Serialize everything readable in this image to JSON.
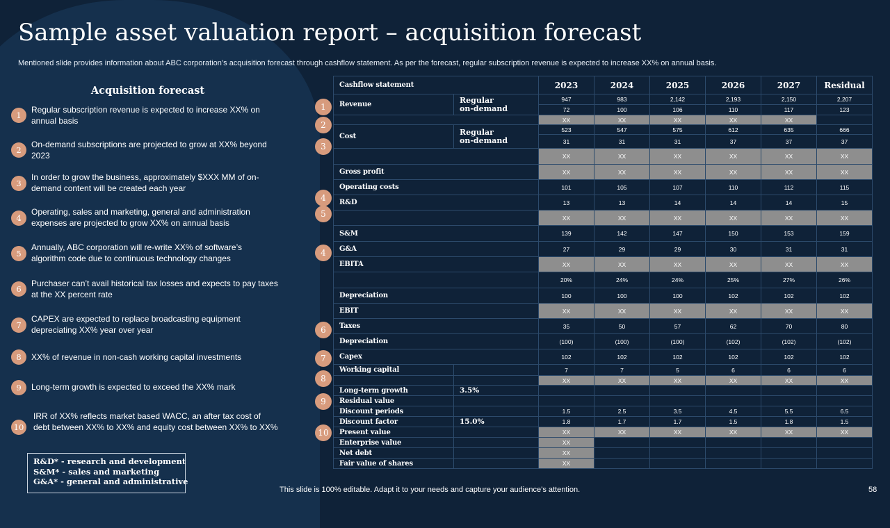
{
  "title": "Sample asset valuation report – acquisition forecast",
  "subtitle": "Mentioned slide provides information about ABC corporation’s acquisition forecast through cashflow statement. As per the forecast, regular subscription revenue is expected to increase XX% on annual basis.",
  "left_panel": {
    "title": "Acquisition forecast",
    "items": [
      {
        "num": "1",
        "text": "Regular subscription revenue is expected to increase XX% on annual basis"
      },
      {
        "num": "2",
        "text": "On-demand subscriptions are projected to grow at XX% beyond 2023"
      },
      {
        "num": "3",
        "text": "In order to grow the business, approximately $XXX MM of on-demand content will be created each year"
      },
      {
        "num": "4",
        "text": "Operating, sales and marketing, general and administration expenses are projected to grow XX% on annual basis"
      },
      {
        "num": "5",
        "text": "Annually, ABC corporation will re-write XX% of software’s algorithm code due to continuous technology changes"
      },
      {
        "num": "6",
        "text": "Purchaser can’t avail historical tax losses and expects to pay taxes at the XX percent rate"
      },
      {
        "num": "7",
        "text": "CAPEX are expected to replace broadcasting equipment depreciating XX% year over year"
      },
      {
        "num": "8",
        "text": "XX% of revenue in non-cash working capital investments"
      },
      {
        "num": "9",
        "text": "Long-term growth is expected to exceed the XX% mark"
      },
      {
        "num": "10",
        "text": "IRR of XX% reflects market based WACC, an after tax cost of debt between XX% to XX% and equity cost between XX% to XX%"
      }
    ]
  },
  "abbreviations": [
    "R&D* - research and development",
    "S&M* - sales and marketing",
    "G&A* - general and administrative"
  ],
  "table": {
    "header_label": "Cashflow statement",
    "years": [
      "2023",
      "2024",
      "2025",
      "2026",
      "2027",
      "Residual"
    ],
    "revenue": {
      "label": "Revenue",
      "sub": [
        "Regular",
        "on-demand"
      ],
      "regular": [
        "947",
        "983",
        "2,142",
        "2,193",
        "2,150",
        "2,207"
      ],
      "on_demand": [
        "72",
        "100",
        "106",
        "110",
        "117",
        "123"
      ]
    },
    "revenue_total": [
      "XX",
      "XX",
      "XX",
      "XX",
      "XX",
      ""
    ],
    "cost": {
      "label": "Cost",
      "sub": [
        "Regular",
        "on-demand"
      ],
      "regular": [
        "523",
        "547",
        "575",
        "612",
        "635",
        "666"
      ],
      "on_demand": [
        "31",
        "31",
        "31",
        "37",
        "37",
        "37"
      ]
    },
    "cost_total": [
      "XX",
      "XX",
      "XX",
      "XX",
      "XX",
      "XX"
    ],
    "gross_profit": {
      "label": "Gross profit",
      "values": [
        "XX",
        "XX",
        "XX",
        "XX",
        "XX",
        "XX"
      ]
    },
    "operating_costs": {
      "label": "Operating costs",
      "values": [
        "101",
        "105",
        "107",
        "110",
        "112",
        "115"
      ]
    },
    "rnd": {
      "label": "R&D",
      "values": [
        "13",
        "13",
        "14",
        "14",
        "14",
        "15"
      ]
    },
    "rnd_total": [
      "XX",
      "XX",
      "XX",
      "XX",
      "XX",
      "XX"
    ],
    "snm": {
      "label": "S&M",
      "values": [
        "139",
        "142",
        "147",
        "150",
        "153",
        "159"
      ]
    },
    "gna": {
      "label": "G&A",
      "values": [
        "27",
        "29",
        "29",
        "30",
        "31",
        "31"
      ]
    },
    "ebita": {
      "label": "EBITA",
      "values": [
        "XX",
        "XX",
        "XX",
        "XX",
        "XX",
        "XX"
      ]
    },
    "ebita_margin": [
      "20%",
      "24%",
      "24%",
      "25%",
      "27%",
      "26%"
    ],
    "depreciation1": {
      "label": "Depreciation",
      "values": [
        "100",
        "100",
        "100",
        "102",
        "102",
        "102"
      ]
    },
    "ebit": {
      "label": "EBIT",
      "values": [
        "XX",
        "XX",
        "XX",
        "XX",
        "XX",
        "XX"
      ]
    },
    "taxes": {
      "label": "Taxes",
      "values": [
        "35",
        "50",
        "57",
        "62",
        "70",
        "80"
      ]
    },
    "depreciation2": {
      "label": "Depreciation",
      "values": [
        "(100)",
        "(100)",
        "(100)",
        "(102)",
        "(102)",
        "(102)"
      ]
    },
    "capex": {
      "label": "Capex",
      "values": [
        "102",
        "102",
        "102",
        "102",
        "102",
        "102"
      ]
    },
    "working_capital": {
      "label": "Working capital",
      "values": [
        "7",
        "7",
        "5",
        "6",
        "6",
        "6"
      ]
    },
    "working_capital_total": [
      "XX",
      "XX",
      "XX",
      "XX",
      "XX",
      "XX"
    ],
    "long_term_growth": {
      "label": "Long-term growth",
      "param": "3.5%"
    },
    "residual_value": {
      "label": "Residual value"
    },
    "discount_periods": {
      "label": "Discount periods",
      "values": [
        "1.5",
        "2.5",
        "3.5",
        "4.5",
        "5.5",
        "6.5"
      ]
    },
    "discount_factor": {
      "label": "Discount factor",
      "param": "15.0%",
      "values": [
        "1.8",
        "1.7",
        "1.7",
        "1.5",
        "1.8",
        "1.5"
      ]
    },
    "present_value": {
      "label": "Present value",
      "values": [
        "XX",
        "XX",
        "XX",
        "XX",
        "XX",
        "XX"
      ]
    },
    "enterprise_value": {
      "label": "Enterprise value",
      "value": "XX"
    },
    "net_debt": {
      "label": "Net debt",
      "value": "XX"
    },
    "fair_value": {
      "label": "Fair value of shares",
      "value": "XX"
    }
  },
  "table_markers": [
    "1",
    "2",
    "3",
    "4",
    "5",
    "4",
    "6",
    "7",
    "8",
    "9",
    "10"
  ],
  "footer": "This slide is 100% editable. Adapt it to your needs and capture your audience’s attention.",
  "page_number": "58",
  "colors": {
    "background": "#0f2238",
    "panel": "#15304d",
    "accent": "#d79b7d",
    "placeholder_cell": "#8e8e8e"
  }
}
